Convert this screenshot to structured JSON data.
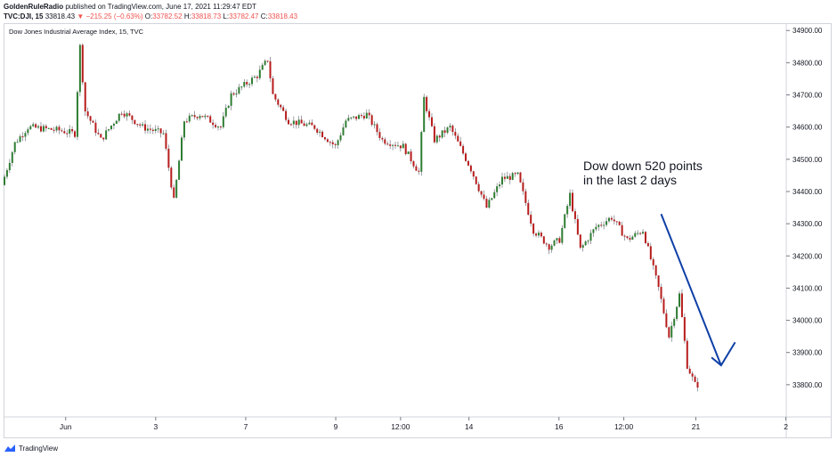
{
  "header": {
    "publisher": "GoldenRuleRadio",
    "published_text": "published on TradingView.com, June 17, 2021 11:29:47 EDT",
    "symbol": "TVC:DJI, 15",
    "last": "33818.43",
    "change": "−215.25 (−0.63%)",
    "open_label": "O:",
    "open": "33782.52",
    "high_label": "H:",
    "high": "33818.73",
    "low_label": "L:",
    "low": "33782.47",
    "close_label": "C:",
    "close": "33818.43"
  },
  "chart_title": "Dow Jones Industrial Average Index, 15, TVC",
  "footer": {
    "brand": "TradingView"
  },
  "colors": {
    "up": "#26a69a",
    "down": "#ef5350",
    "candle_up_body": "#2e7d32",
    "candle_down_body": "#b71c1c",
    "arrow": "#0d3fa6",
    "grid_border": "#d1d4dc"
  },
  "chart_data": {
    "type": "candlestick",
    "title": "Dow Jones Industrial Average Index, 15, TVC",
    "y_range": [
      33700,
      34920
    ],
    "y_ticks": [
      "34900.00",
      "34800.00",
      "34700.00",
      "34600.00",
      "34500.00",
      "34400.00",
      "34300.00",
      "34200.00",
      "34100.00",
      "34000.00",
      "33900.00",
      "33800.00"
    ],
    "x_ticks": [
      "Jun",
      "3",
      "7",
      "9",
      "12:00",
      "14",
      "16",
      "12:00",
      "21",
      "2"
    ],
    "annotation": {
      "line1": "Dow down 520 points",
      "line2": "in the last 2 days"
    },
    "key_points": [
      {
        "t": 0,
        "v": 34420
      },
      {
        "t": 5,
        "v": 34550
      },
      {
        "t": 10,
        "v": 34600
      },
      {
        "t": 22,
        "v": 34590
      },
      {
        "t": 28,
        "v": 34580
      },
      {
        "t": 30,
        "v": 34850
      },
      {
        "t": 32,
        "v": 34650
      },
      {
        "t": 38,
        "v": 34560
      },
      {
        "t": 46,
        "v": 34650
      },
      {
        "t": 54,
        "v": 34600
      },
      {
        "t": 62,
        "v": 34580
      },
      {
        "t": 66,
        "v": 34370
      },
      {
        "t": 70,
        "v": 34620
      },
      {
        "t": 76,
        "v": 34640
      },
      {
        "t": 84,
        "v": 34600
      },
      {
        "t": 88,
        "v": 34700
      },
      {
        "t": 98,
        "v": 34760
      },
      {
        "t": 102,
        "v": 34810
      },
      {
        "t": 104,
        "v": 34700
      },
      {
        "t": 110,
        "v": 34620
      },
      {
        "t": 120,
        "v": 34600
      },
      {
        "t": 128,
        "v": 34540
      },
      {
        "t": 132,
        "v": 34620
      },
      {
        "t": 140,
        "v": 34640
      },
      {
        "t": 146,
        "v": 34560
      },
      {
        "t": 154,
        "v": 34540
      },
      {
        "t": 160,
        "v": 34460
      },
      {
        "t": 162,
        "v": 34690
      },
      {
        "t": 166,
        "v": 34560
      },
      {
        "t": 172,
        "v": 34600
      },
      {
        "t": 180,
        "v": 34470
      },
      {
        "t": 186,
        "v": 34350
      },
      {
        "t": 192,
        "v": 34440
      },
      {
        "t": 198,
        "v": 34450
      },
      {
        "t": 204,
        "v": 34280
      },
      {
        "t": 210,
        "v": 34230
      },
      {
        "t": 214,
        "v": 34250
      },
      {
        "t": 218,
        "v": 34390
      },
      {
        "t": 222,
        "v": 34220
      },
      {
        "t": 228,
        "v": 34290
      },
      {
        "t": 234,
        "v": 34320
      },
      {
        "t": 240,
        "v": 34250
      },
      {
        "t": 246,
        "v": 34280
      },
      {
        "t": 252,
        "v": 34100
      },
      {
        "t": 256,
        "v": 33950
      },
      {
        "t": 260,
        "v": 34080
      },
      {
        "t": 263,
        "v": 33860
      },
      {
        "t": 266,
        "v": 33800
      }
    ],
    "arrow": {
      "from": {
        "t": 252,
        "v": 34330
      },
      "to": {
        "t": 275,
        "v": 33860
      }
    }
  }
}
